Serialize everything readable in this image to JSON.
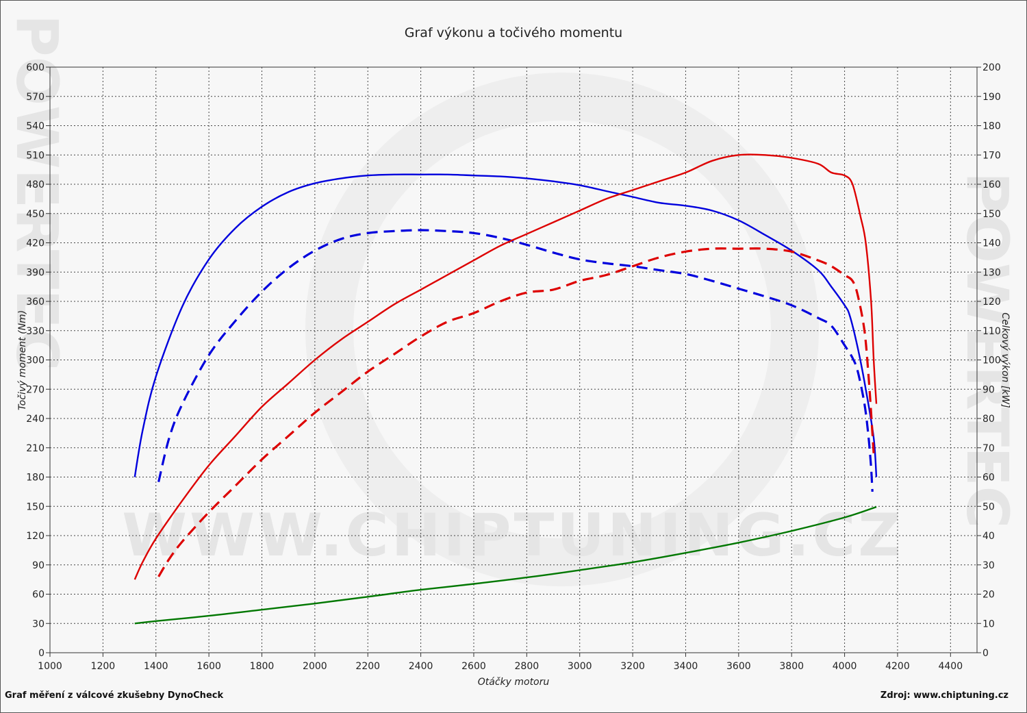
{
  "chart_data": {
    "type": "line",
    "title": "Graf výkonu a točivého momentu",
    "xlabel": "Otáčky motoru",
    "ylabel_left": "Točivý moment (Nm)",
    "ylabel_right": "Celkový výkon [kW]",
    "xlim": [
      1000,
      4500
    ],
    "ylim_left": [
      0,
      600
    ],
    "ylim_right": [
      0,
      200
    ],
    "x_ticks": [
      1000,
      1200,
      1400,
      1600,
      1800,
      2000,
      2200,
      2400,
      2600,
      2800,
      3000,
      3200,
      3400,
      3600,
      3800,
      4000,
      4200,
      4400
    ],
    "y_ticks_left": [
      0,
      30,
      60,
      90,
      120,
      150,
      180,
      210,
      240,
      270,
      300,
      330,
      360,
      390,
      420,
      450,
      480,
      510,
      540,
      570,
      600
    ],
    "y_ticks_right": [
      0,
      10,
      20,
      30,
      40,
      50,
      60,
      70,
      80,
      90,
      100,
      110,
      120,
      130,
      140,
      150,
      160,
      170,
      180,
      190,
      200
    ],
    "grid": true,
    "legend": "none",
    "series": [
      {
        "axis": "left",
        "color": "#0000dd",
        "style": "solid",
        "points": [
          [
            1320,
            180
          ],
          [
            1350,
            228
          ],
          [
            1400,
            283
          ],
          [
            1500,
            355
          ],
          [
            1600,
            403
          ],
          [
            1700,
            435
          ],
          [
            1800,
            457
          ],
          [
            1900,
            472
          ],
          [
            2000,
            481
          ],
          [
            2100,
            486
          ],
          [
            2200,
            489
          ],
          [
            2300,
            490
          ],
          [
            2400,
            490
          ],
          [
            2500,
            490
          ],
          [
            2600,
            489
          ],
          [
            2700,
            488
          ],
          [
            2800,
            486
          ],
          [
            2900,
            483
          ],
          [
            3000,
            479
          ],
          [
            3100,
            473
          ],
          [
            3200,
            467
          ],
          [
            3300,
            461
          ],
          [
            3400,
            458
          ],
          [
            3500,
            453
          ],
          [
            3600,
            443
          ],
          [
            3700,
            428
          ],
          [
            3800,
            412
          ],
          [
            3900,
            392
          ],
          [
            3950,
            375
          ],
          [
            4000,
            356
          ],
          [
            4020,
            345
          ],
          [
            4050,
            312
          ],
          [
            4080,
            270
          ],
          [
            4110,
            220
          ],
          [
            4120,
            180
          ]
        ]
      },
      {
        "axis": "left",
        "color": "#0000dd",
        "style": "dashed",
        "points": [
          [
            1410,
            175
          ],
          [
            1450,
            220
          ],
          [
            1500,
            255
          ],
          [
            1600,
            305
          ],
          [
            1700,
            340
          ],
          [
            1800,
            370
          ],
          [
            1900,
            394
          ],
          [
            2000,
            412
          ],
          [
            2100,
            424
          ],
          [
            2200,
            430
          ],
          [
            2300,
            432
          ],
          [
            2400,
            433
          ],
          [
            2500,
            432
          ],
          [
            2600,
            430
          ],
          [
            2700,
            425
          ],
          [
            2800,
            418
          ],
          [
            2900,
            410
          ],
          [
            3000,
            403
          ],
          [
            3100,
            399
          ],
          [
            3200,
            396
          ],
          [
            3300,
            392
          ],
          [
            3400,
            388
          ],
          [
            3500,
            381
          ],
          [
            3600,
            373
          ],
          [
            3700,
            365
          ],
          [
            3800,
            356
          ],
          [
            3900,
            343
          ],
          [
            3950,
            335
          ],
          [
            4000,
            315
          ],
          [
            4030,
            302
          ],
          [
            4050,
            288
          ],
          [
            4075,
            255
          ],
          [
            4090,
            222
          ],
          [
            4100,
            190
          ],
          [
            4105,
            165
          ]
        ]
      },
      {
        "axis": "right",
        "color": "#dd0000",
        "style": "solid",
        "points": [
          [
            1320,
            25
          ],
          [
            1350,
            31
          ],
          [
            1400,
            39
          ],
          [
            1500,
            52
          ],
          [
            1600,
            64
          ],
          [
            1700,
            74
          ],
          [
            1800,
            84
          ],
          [
            1900,
            92
          ],
          [
            2000,
            100
          ],
          [
            2100,
            107
          ],
          [
            2200,
            113
          ],
          [
            2300,
            119
          ],
          [
            2400,
            124
          ],
          [
            2500,
            129
          ],
          [
            2600,
            134
          ],
          [
            2700,
            139
          ],
          [
            2800,
            143
          ],
          [
            2900,
            147
          ],
          [
            3000,
            151
          ],
          [
            3100,
            155
          ],
          [
            3200,
            158
          ],
          [
            3300,
            161
          ],
          [
            3400,
            164
          ],
          [
            3500,
            168
          ],
          [
            3600,
            170
          ],
          [
            3700,
            170
          ],
          [
            3800,
            169
          ],
          [
            3900,
            167
          ],
          [
            3950,
            164
          ],
          [
            4000,
            163
          ],
          [
            4030,
            160
          ],
          [
            4060,
            149
          ],
          [
            4080,
            140
          ],
          [
            4100,
            120
          ],
          [
            4110,
            100
          ],
          [
            4120,
            85
          ]
        ]
      },
      {
        "axis": "right",
        "color": "#dd0000",
        "style": "dashed",
        "points": [
          [
            1410,
            26
          ],
          [
            1450,
            32
          ],
          [
            1500,
            38
          ],
          [
            1600,
            48
          ],
          [
            1700,
            57
          ],
          [
            1800,
            66
          ],
          [
            1900,
            74
          ],
          [
            2000,
            82
          ],
          [
            2100,
            89
          ],
          [
            2200,
            96
          ],
          [
            2300,
            102
          ],
          [
            2400,
            108
          ],
          [
            2500,
            113
          ],
          [
            2600,
            116
          ],
          [
            2700,
            120
          ],
          [
            2800,
            123
          ],
          [
            2900,
            124
          ],
          [
            3000,
            127
          ],
          [
            3100,
            129
          ],
          [
            3200,
            132
          ],
          [
            3300,
            135
          ],
          [
            3400,
            137
          ],
          [
            3500,
            138
          ],
          [
            3600,
            138
          ],
          [
            3700,
            138
          ],
          [
            3800,
            137
          ],
          [
            3900,
            134
          ],
          [
            3950,
            132
          ],
          [
            4000,
            129
          ],
          [
            4030,
            127
          ],
          [
            4050,
            122
          ],
          [
            4075,
            110
          ],
          [
            4090,
            95
          ],
          [
            4100,
            82
          ],
          [
            4110,
            68
          ]
        ]
      },
      {
        "axis": "right",
        "color": "#007700",
        "style": "solid",
        "points": [
          [
            1320,
            10
          ],
          [
            1400,
            10.8
          ],
          [
            1600,
            12.6
          ],
          [
            1800,
            14.7
          ],
          [
            2000,
            16.8
          ],
          [
            2200,
            19.1
          ],
          [
            2400,
            21.5
          ],
          [
            2600,
            23.5
          ],
          [
            2800,
            25.7
          ],
          [
            3000,
            28.2
          ],
          [
            3200,
            30.9
          ],
          [
            3400,
            34.1
          ],
          [
            3600,
            37.6
          ],
          [
            3800,
            41.6
          ],
          [
            4000,
            46.2
          ],
          [
            4120,
            49.8
          ]
        ]
      }
    ],
    "source_note": "Graf měření z válcové zkušebny DynoCheck",
    "source_url": "Zdroj: www.chiptuning.cz"
  },
  "watermark": {
    "url": "WWW.CHIPTUNING.CZ",
    "side": "POWERTEC"
  }
}
